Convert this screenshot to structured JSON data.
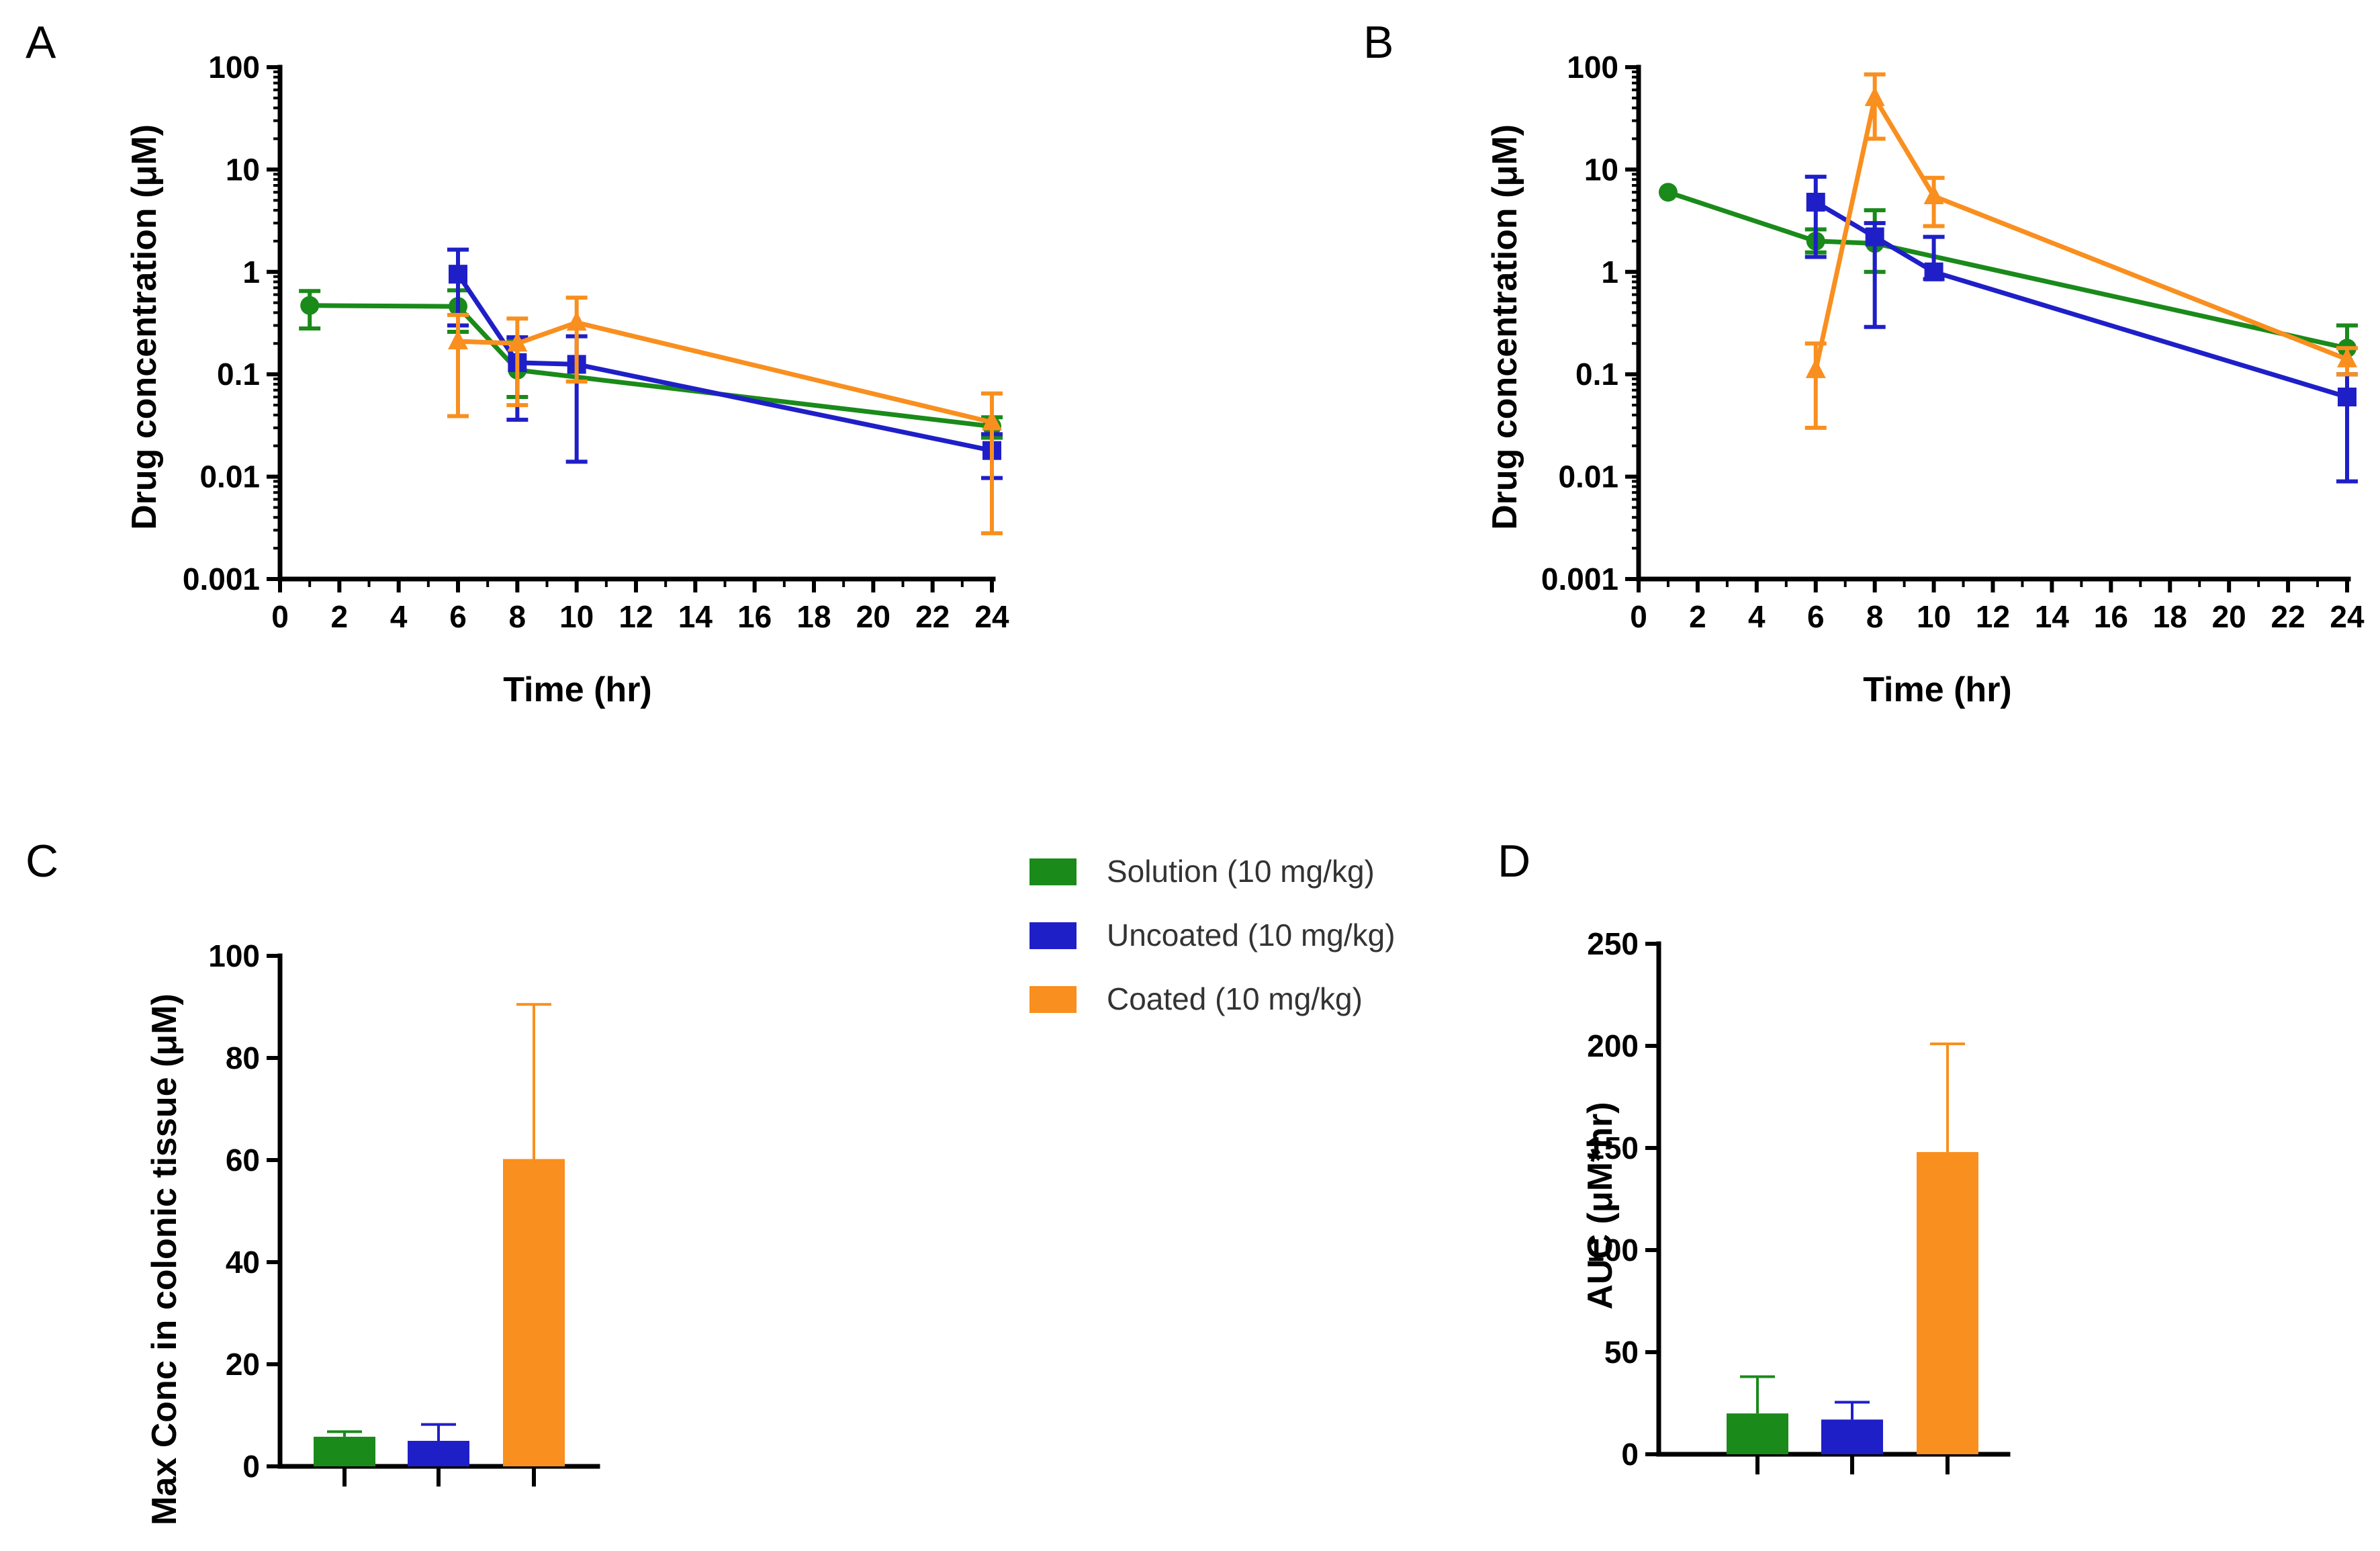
{
  "legend": {
    "items": [
      {
        "label": "Solution (10 mg/kg)",
        "color": "#1a8a1a"
      },
      {
        "label": "Uncoated (10 mg/kg)",
        "color": "#1f1fc8"
      },
      {
        "label": "Coated (10 mg/kg)",
        "color": "#f98f1f"
      }
    ]
  },
  "chart_data": [
    {
      "panel": "A",
      "type": "line",
      "title": "",
      "xlabel": "Time (hr)",
      "ylabel": "Drug concentration (μM)",
      "yscale": "log",
      "xlim": [
        0,
        24
      ],
      "ylim": [
        0.001,
        100
      ],
      "xticks": [
        "0",
        "2",
        "4",
        "6",
        "8",
        "10",
        "12",
        "14",
        "16",
        "18",
        "20",
        "22",
        "24"
      ],
      "yticks": [
        "0.001",
        "0.01",
        "0.1",
        "1",
        "10",
        "100"
      ],
      "series": [
        {
          "name": "Solution (10 mg/kg)",
          "marker": "circle",
          "x": [
            1,
            6,
            8,
            24
          ],
          "y": [
            0.47,
            0.46,
            0.11,
            0.031
          ],
          "err_low": [
            0.28,
            0.26,
            0.06,
            0.024
          ],
          "err_high": [
            0.65,
            0.66,
            0.22,
            0.038
          ]
        },
        {
          "name": "Uncoated (10 mg/kg)",
          "marker": "square",
          "x": [
            6,
            8,
            10,
            24
          ],
          "y": [
            0.95,
            0.13,
            0.125,
            0.018
          ],
          "err_low": [
            0.3,
            0.036,
            0.014,
            0.0097
          ],
          "err_high": [
            1.65,
            0.23,
            0.235,
            0.026
          ]
        },
        {
          "name": "Coated (10 mg/kg)",
          "marker": "triangle",
          "x": [
            6,
            8,
            10,
            24
          ],
          "y": [
            0.21,
            0.2,
            0.32,
            0.034
          ],
          "err_low": [
            0.039,
            0.05,
            0.085,
            0.0028
          ],
          "err_high": [
            0.38,
            0.35,
            0.56,
            0.065
          ]
        }
      ]
    },
    {
      "panel": "B",
      "type": "line",
      "title": "",
      "xlabel": "Time (hr)",
      "ylabel": "Drug concentration (μM)",
      "yscale": "log",
      "xlim": [
        0,
        24
      ],
      "ylim": [
        0.001,
        100
      ],
      "xticks": [
        "0",
        "2",
        "4",
        "6",
        "8",
        "10",
        "12",
        "14",
        "16",
        "18",
        "20",
        "22",
        "24"
      ],
      "yticks": [
        "0.001",
        "0.01",
        "0.1",
        "1",
        "10",
        "100"
      ],
      "series": [
        {
          "name": "Solution (10 mg/kg)",
          "marker": "circle",
          "x": [
            1,
            6,
            8,
            24
          ],
          "y": [
            6.0,
            2.0,
            1.9,
            0.18
          ],
          "err_low": [
            6.0,
            1.55,
            1.0,
            0.1
          ],
          "err_high": [
            6.0,
            2.6,
            4.0,
            0.3
          ]
        },
        {
          "name": "Uncoated (10 mg/kg)",
          "marker": "square",
          "x": [
            6,
            8,
            10,
            24
          ],
          "y": [
            4.8,
            2.2,
            1.0,
            0.06
          ],
          "err_low": [
            1.4,
            0.29,
            0.85,
            0.009
          ],
          "err_high": [
            8.5,
            3.0,
            2.2,
            0.1
          ]
        },
        {
          "name": "Coated (10 mg/kg)",
          "marker": "triangle",
          "x": [
            6,
            8,
            10,
            24
          ],
          "y": [
            0.11,
            50,
            5.5,
            0.14
          ],
          "err_low": [
            0.03,
            20,
            2.8,
            0.1
          ],
          "err_high": [
            0.2,
            85,
            8.3,
            0.18
          ]
        }
      ]
    },
    {
      "panel": "C",
      "type": "bar",
      "title": "",
      "xlabel": "",
      "ylabel": "Max Conc in colonic tissue (μM)",
      "ylim": [
        0,
        100
      ],
      "yticks": [
        "0",
        "20",
        "40",
        "60",
        "80",
        "100"
      ],
      "categories": [
        "Solution (10 mg/kg)",
        "Uncoated (10 mg/kg)",
        "Coated (10 mg/kg)"
      ],
      "values": [
        5.8,
        5.0,
        60.2
      ],
      "errors": [
        1.0,
        3.2,
        30.3
      ]
    },
    {
      "panel": "D",
      "type": "bar",
      "title": "",
      "xlabel": "",
      "ylabel": "AUC (μM*hr)",
      "ylim": [
        0,
        250
      ],
      "yticks": [
        "0",
        "50",
        "100",
        "150",
        "200",
        "250"
      ],
      "categories": [
        "Solution (10 mg/kg)",
        "Uncoated (10 mg/kg)",
        "Coated (10 mg/kg)"
      ],
      "values": [
        20,
        17,
        148
      ],
      "errors": [
        18,
        8.5,
        53
      ]
    }
  ]
}
